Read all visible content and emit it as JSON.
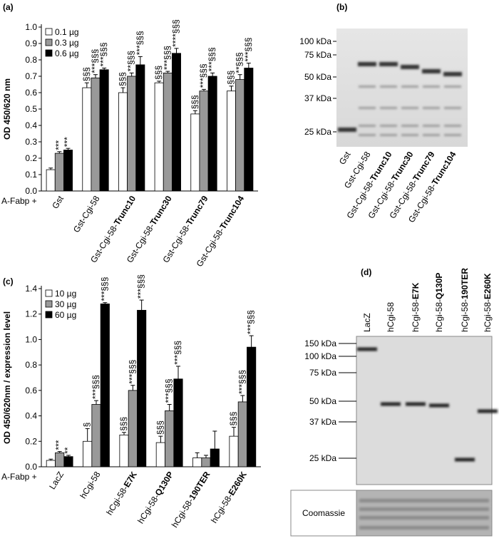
{
  "chart_data": [
    {
      "type": "bar",
      "panel": "(a)",
      "y_label": "OD 450/620 nm",
      "group_label": "A-Fabp +",
      "categories": [
        "Gst",
        "Gst-Cgi-58",
        "Gst-Cgi-58-Trunc10",
        "Gst-Cgi-58-Trunc30",
        "Gst-Cgi-58-Trunc79",
        "Gst-Cgi-58-Trunc104"
      ],
      "series": [
        {
          "name": "0.1 µg",
          "color": "#ffffff",
          "values": [
            0.13,
            0.63,
            0.6,
            0.66,
            0.47,
            0.61
          ],
          "errors": [
            0.01,
            0.03,
            0.03,
            0.01,
            0.02,
            0.03
          ],
          "annotations": [
            null,
            "§§§",
            "§§§",
            "§§§",
            "§§§",
            "§§§"
          ]
        },
        {
          "name": "0.3 µg",
          "color": "#999999",
          "values": [
            0.23,
            0.69,
            0.7,
            0.72,
            0.61,
            0.68
          ],
          "errors": [
            0.01,
            0.02,
            0.02,
            0.01,
            0.01,
            0.03
          ],
          "annotations": [
            "***",
            "***§§§",
            "**§§§",
            "***§§§",
            "***§§§",
            "**§§§"
          ]
        },
        {
          "name": "0.6 µg",
          "color": "#000000",
          "values": [
            0.25,
            0.74,
            0.77,
            0.84,
            0.7,
            0.75
          ],
          "errors": [
            0.01,
            0.01,
            0.05,
            0.03,
            0.02,
            0.03
          ],
          "annotations": [
            "***",
            "***§§§",
            "***§§§",
            "****§§§",
            "***§§§",
            "***§§§"
          ]
        }
      ],
      "ylim": [
        0,
        1.0
      ],
      "yticks": [
        {
          "value": 0,
          "label": "0.0"
        },
        0.1,
        0.2,
        0.3,
        0.4,
        0.5,
        0.6,
        0.7,
        0.8,
        0.9,
        {
          "value": 1,
          "label": "1.0"
        }
      ]
    },
    {
      "type": "bar",
      "panel": "(c)",
      "y_label": "OD 450/620nm / expression level",
      "group_label": "A-Fabp +",
      "categories": [
        "LacZ",
        "hCgi-58",
        "hCgi-58-E7K",
        "hCgi-58-Q130P",
        "hCgi-58-190TER",
        "hCgi-58-E260K"
      ],
      "series": [
        {
          "name": "10 µg",
          "color": "#ffffff",
          "values": [
            0.05,
            0.2,
            0.25,
            0.19,
            0.07,
            0.24
          ],
          "errors": [
            0.01,
            0.1,
            0.02,
            0.05,
            0.04,
            0.07
          ],
          "annotations": [
            null,
            "§",
            "§§§",
            "§§§",
            null,
            "§§§"
          ]
        },
        {
          "name": "30 µg",
          "color": "#999999",
          "values": [
            0.11,
            0.49,
            0.6,
            0.44,
            0.07,
            0.51
          ],
          "errors": [
            0.01,
            0.03,
            0.04,
            0.05,
            0.02,
            0.05
          ],
          "annotations": [
            "***",
            "***§§§",
            "***§§§",
            "***§§§",
            null,
            "***§§§"
          ]
        },
        {
          "name": "60 µg",
          "color": "#000000",
          "values": [
            0.08,
            1.28,
            1.23,
            0.69,
            0.14,
            0.94
          ],
          "errors": [
            0.01,
            0.01,
            0.08,
            0.1,
            0.14,
            0.09
          ],
          "annotations": [
            "**",
            "***§§§",
            "***§§§",
            "***§§§",
            null,
            "***§§§"
          ]
        }
      ],
      "ylim": [
        0,
        1.4
      ],
      "yticks": [
        {
          "value": 0,
          "label": "0.0"
        },
        0.2,
        0.4,
        0.6,
        0.8,
        {
          "value": 1,
          "label": "1.0"
        },
        1.2,
        1.4
      ]
    }
  ],
  "gels": [
    {
      "panel": "(b)",
      "lanes": [
        "Gst",
        "Gst-Cgi-58",
        "Gst-Cgi-58-Trunc10",
        "Gst-Cgi-58-Trunc30",
        "Gst-Cgi-58-Trunc79",
        "Gst-Cgi-58-Trunc104"
      ],
      "markers": [
        "100 kDa",
        "75 kDa",
        "50 kDa",
        "37 kDa",
        "25 kDa"
      ]
    },
    {
      "panel": "(d)",
      "lanes": [
        "LacZ",
        "hCgi-58",
        "hCgi-58-E7K",
        "hCgi-58-Q130P",
        "hCgi-58-190TER",
        "hCgi-58-E260K"
      ],
      "markers": [
        "150 kDa",
        "100 kDa",
        "75 kDa",
        "50 kDa",
        "37 kDa",
        "25 kDa"
      ],
      "loading_label": "Coomassie"
    }
  ]
}
